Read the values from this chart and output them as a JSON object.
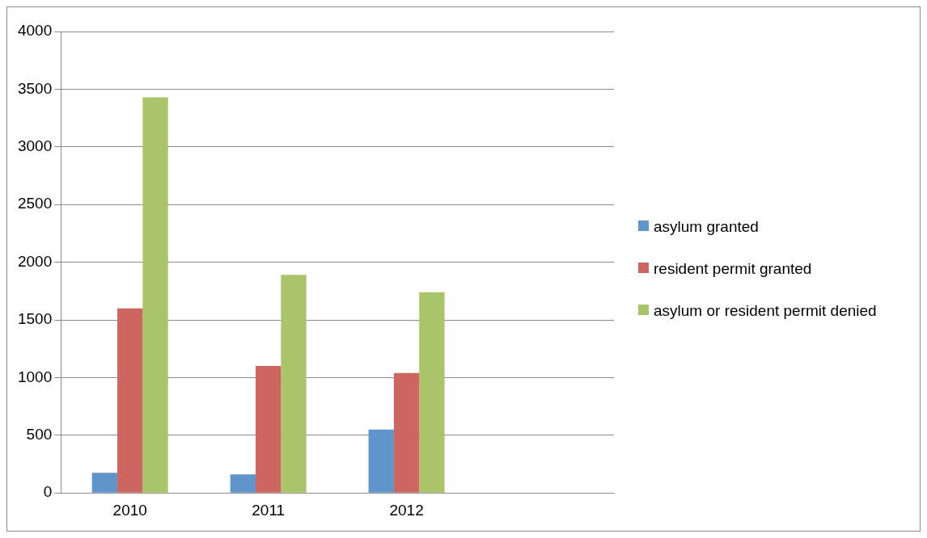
{
  "chart_data": {
    "type": "bar",
    "categories": [
      "2010",
      "2011",
      "2012",
      null
    ],
    "series": [
      {
        "name": "asylum granted",
        "color": "#5f95cb",
        "values": [
          175,
          160,
          550,
          null
        ]
      },
      {
        "name": "resident permit granted",
        "color": "#cd6560",
        "values": [
          1600,
          1100,
          1040,
          null
        ]
      },
      {
        "name": "asylum or resident permit denied",
        "color": "#aac46a",
        "values": [
          3430,
          1890,
          1740,
          null
        ]
      }
    ],
    "ylim": [
      0,
      4000
    ],
    "yticks": [
      0,
      500,
      1000,
      1500,
      2000,
      2500,
      3000,
      3500,
      4000
    ],
    "grid": "y",
    "legend": "right"
  }
}
